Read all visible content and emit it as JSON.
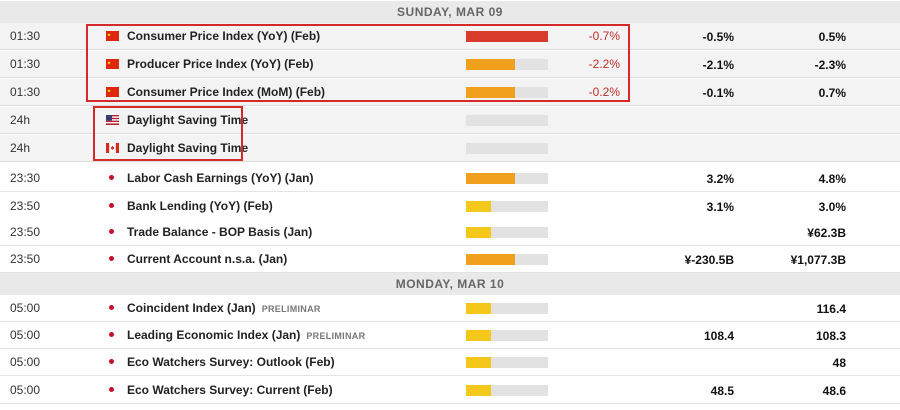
{
  "days": [
    {
      "label": "SUNDAY, MAR 09"
    },
    {
      "label": "MONDAY, MAR 10"
    }
  ],
  "colors": {
    "high": "#d83a2c",
    "medium": "#f0a01c",
    "low": "#f3c81a",
    "highlight_border": "#d42a2a",
    "actual_red": "#c0302b"
  },
  "events": [
    {
      "time": "01:30",
      "country": "China",
      "flag": "cn-flag-icon",
      "name": "Consumer Price Index (YoY) (Feb)",
      "tag": "",
      "impact": "high",
      "impact_level": 1.0,
      "actual": "-0.7%",
      "consensus": "-0.5%",
      "previous": "0.5%"
    },
    {
      "time": "01:30",
      "country": "China",
      "flag": "cn-flag-icon",
      "name": "Producer Price Index (YoY) (Feb)",
      "tag": "",
      "impact": "medium",
      "impact_level": 0.6,
      "actual": "-2.2%",
      "consensus": "-2.1%",
      "previous": "-2.3%"
    },
    {
      "time": "01:30",
      "country": "China",
      "flag": "cn-flag-icon",
      "name": "Consumer Price Index (MoM) (Feb)",
      "tag": "",
      "impact": "medium",
      "impact_level": 0.6,
      "actual": "-0.2%",
      "consensus": "-0.1%",
      "previous": "0.7%"
    },
    {
      "time": "24h",
      "country": "United States",
      "flag": "us-flag-icon",
      "name": "Daylight Saving Time",
      "tag": "",
      "impact": "none",
      "impact_level": 0,
      "actual": "",
      "consensus": "",
      "previous": ""
    },
    {
      "time": "24h",
      "country": "Canada",
      "flag": "ca-flag-icon",
      "name": "Daylight Saving Time",
      "tag": "",
      "impact": "none",
      "impact_level": 0,
      "actual": "",
      "consensus": "",
      "previous": ""
    },
    {
      "time": "23:30",
      "country": "Japan",
      "flag": "jp-flag-icon",
      "name": "Labor Cash Earnings (YoY) (Jan)",
      "tag": "",
      "impact": "medium",
      "impact_level": 0.6,
      "actual": "",
      "consensus": "3.2%",
      "previous": "4.8%"
    },
    {
      "time": "23:50",
      "country": "Japan",
      "flag": "jp-flag-icon",
      "name": "Bank Lending (YoY) (Feb)",
      "tag": "",
      "impact": "low",
      "impact_level": 0.3,
      "actual": "",
      "consensus": "3.1%",
      "previous": "3.0%"
    },
    {
      "time": "23:50",
      "country": "Japan",
      "flag": "jp-flag-icon",
      "name": "Trade Balance - BOP Basis (Jan)",
      "tag": "",
      "impact": "low",
      "impact_level": 0.3,
      "actual": "",
      "consensus": "",
      "previous": "¥62.3B"
    },
    {
      "time": "23:50",
      "country": "Japan",
      "flag": "jp-flag-icon",
      "name": "Current Account n.s.a. (Jan)",
      "tag": "",
      "impact": "medium",
      "impact_level": 0.6,
      "actual": "",
      "consensus": "¥-230.5B",
      "previous": "¥1,077.3B"
    },
    {
      "time": "05:00",
      "country": "Japan",
      "flag": "jp-flag-icon",
      "name": "Coincident Index (Jan)",
      "tag": "PRELIMINAR",
      "impact": "low",
      "impact_level": 0.3,
      "actual": "",
      "consensus": "",
      "previous": "116.4"
    },
    {
      "time": "05:00",
      "country": "Japan",
      "flag": "jp-flag-icon",
      "name": "Leading Economic Index (Jan)",
      "tag": "PRELIMINAR",
      "impact": "low",
      "impact_level": 0.3,
      "actual": "",
      "consensus": "108.4",
      "previous": "108.3"
    },
    {
      "time": "05:00",
      "country": "Japan",
      "flag": "jp-flag-icon",
      "name": "Eco Watchers Survey: Outlook (Feb)",
      "tag": "",
      "impact": "low",
      "impact_level": 0.3,
      "actual": "",
      "consensus": "",
      "previous": "48"
    },
    {
      "time": "05:00",
      "country": "Japan",
      "flag": "jp-flag-icon",
      "name": "Eco Watchers Survey: Current (Feb)",
      "tag": "",
      "impact": "low",
      "impact_level": 0.3,
      "actual": "",
      "consensus": "48.5",
      "previous": "48.6"
    }
  ]
}
